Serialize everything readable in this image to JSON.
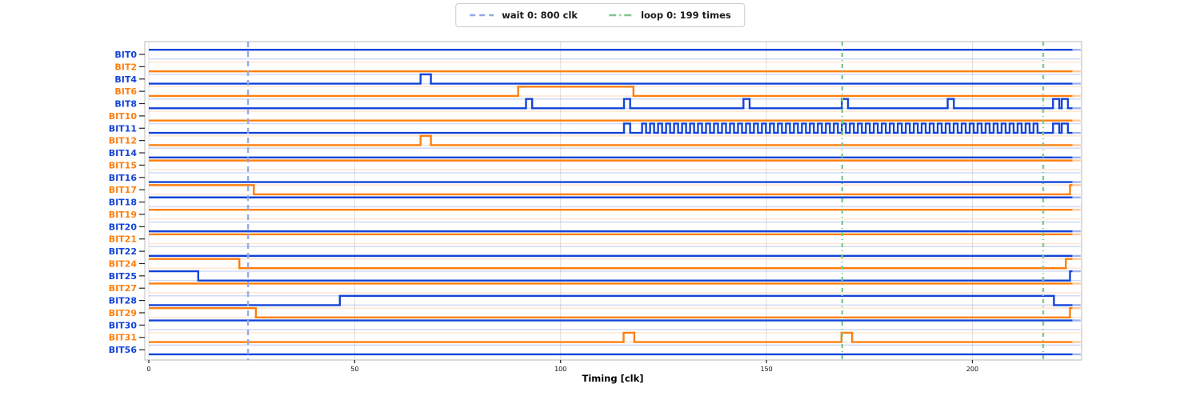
{
  "legend": {
    "items": [
      {
        "label": "wait 0: 800 clk",
        "color": "#8fa8e6",
        "dash": "7 5"
      },
      {
        "label": "loop 0: 199 times",
        "color": "#7dc88c",
        "dash": "9 4 2 4"
      }
    ]
  },
  "axis": {
    "xlabel": "Timing [clk]",
    "xticks": [
      0,
      50,
      100,
      150,
      200
    ],
    "xmin": -1,
    "xmax": 226.5
  },
  "chart_data": {
    "type": "digital-timing",
    "xlabel": "Timing [clk]",
    "x_range": [
      0,
      224.3
    ],
    "colors": {
      "blue": "#1344d8",
      "orange": "#ff7f0e"
    },
    "markers": [
      {
        "kind": "wait",
        "t": 24.1,
        "color": "#8fa8e6",
        "dash": "7 5",
        "label": "wait 0: 800 clk"
      },
      {
        "kind": "loop",
        "t": 168.4,
        "color": "#7dc88c",
        "dash": "5 4 1 4",
        "label": "loop 0: 199 times"
      },
      {
        "kind": "loop",
        "t": 217.2,
        "color": "#7dc88c",
        "dash": "5 4 1 4",
        "label": "loop 0: 199 times"
      }
    ],
    "signals": [
      {
        "name": "BIT0",
        "color": "#1344d8",
        "initial": 1,
        "edges": []
      },
      {
        "name": "BIT2",
        "color": "#ff7f0e",
        "initial": 0,
        "edges": []
      },
      {
        "name": "BIT4",
        "color": "#1344d8",
        "initial": 0,
        "edges": [
          66,
          68.5
        ]
      },
      {
        "name": "BIT6",
        "color": "#ff7f0e",
        "initial": 0,
        "edges": [
          89.7,
          117.7
        ]
      },
      {
        "name": "BIT8",
        "color": "#1344d8",
        "initial": 0,
        "edges": [
          91.6,
          93.1,
          115.4,
          116.9,
          144.4,
          145.9,
          168.3,
          169.8,
          194,
          195.5,
          219.6,
          221.1,
          221.7,
          223.2
        ]
      },
      {
        "name": "BIT10",
        "color": "#ff7f0e",
        "initial": 0,
        "edges": []
      },
      {
        "name": "BIT11",
        "color": "#1344d8",
        "initial": 0,
        "edges": [
          115.4,
          116.9,
          219.6,
          221.1,
          221.7,
          223.2
        ],
        "clock": {
          "start": 119.8,
          "end": 216.3,
          "half_period": 0.97
        }
      },
      {
        "name": "BIT12",
        "color": "#ff7f0e",
        "initial": 0,
        "edges": [
          66,
          68.5
        ]
      },
      {
        "name": "BIT14",
        "color": "#1344d8",
        "initial": 0,
        "edges": []
      },
      {
        "name": "BIT15",
        "color": "#ff7f0e",
        "initial": 1,
        "edges": []
      },
      {
        "name": "BIT16",
        "color": "#1344d8",
        "initial": 0,
        "edges": []
      },
      {
        "name": "BIT17",
        "color": "#ff7f0e",
        "initial": 1,
        "edges": [
          25.5,
          223.7
        ]
      },
      {
        "name": "BIT18",
        "color": "#1344d8",
        "initial": 1,
        "edges": []
      },
      {
        "name": "BIT19",
        "color": "#ff7f0e",
        "initial": 1,
        "edges": []
      },
      {
        "name": "BIT20",
        "color": "#1344d8",
        "initial": 0,
        "edges": []
      },
      {
        "name": "BIT21",
        "color": "#ff7f0e",
        "initial": 1,
        "edges": []
      },
      {
        "name": "BIT22",
        "color": "#1344d8",
        "initial": 0,
        "edges": []
      },
      {
        "name": "BIT24",
        "color": "#ff7f0e",
        "initial": 1,
        "edges": [
          22,
          222.7
        ]
      },
      {
        "name": "BIT25",
        "color": "#1344d8",
        "initial": 1,
        "edges": [
          12,
          223.7
        ]
      },
      {
        "name": "BIT27",
        "color": "#ff7f0e",
        "initial": 1,
        "edges": []
      },
      {
        "name": "BIT28",
        "color": "#1344d8",
        "initial": 0,
        "edges": [
          46.4,
          219.8
        ]
      },
      {
        "name": "BIT29",
        "color": "#ff7f0e",
        "initial": 1,
        "edges": [
          26,
          223.7
        ]
      },
      {
        "name": "BIT30",
        "color": "#1344d8",
        "initial": 1,
        "edges": []
      },
      {
        "name": "BIT31",
        "color": "#ff7f0e",
        "initial": 0,
        "edges": [
          115.3,
          117.9,
          168.2,
          170.8
        ]
      },
      {
        "name": "BIT56",
        "color": "#1344d8",
        "initial": 0,
        "edges": []
      }
    ]
  }
}
